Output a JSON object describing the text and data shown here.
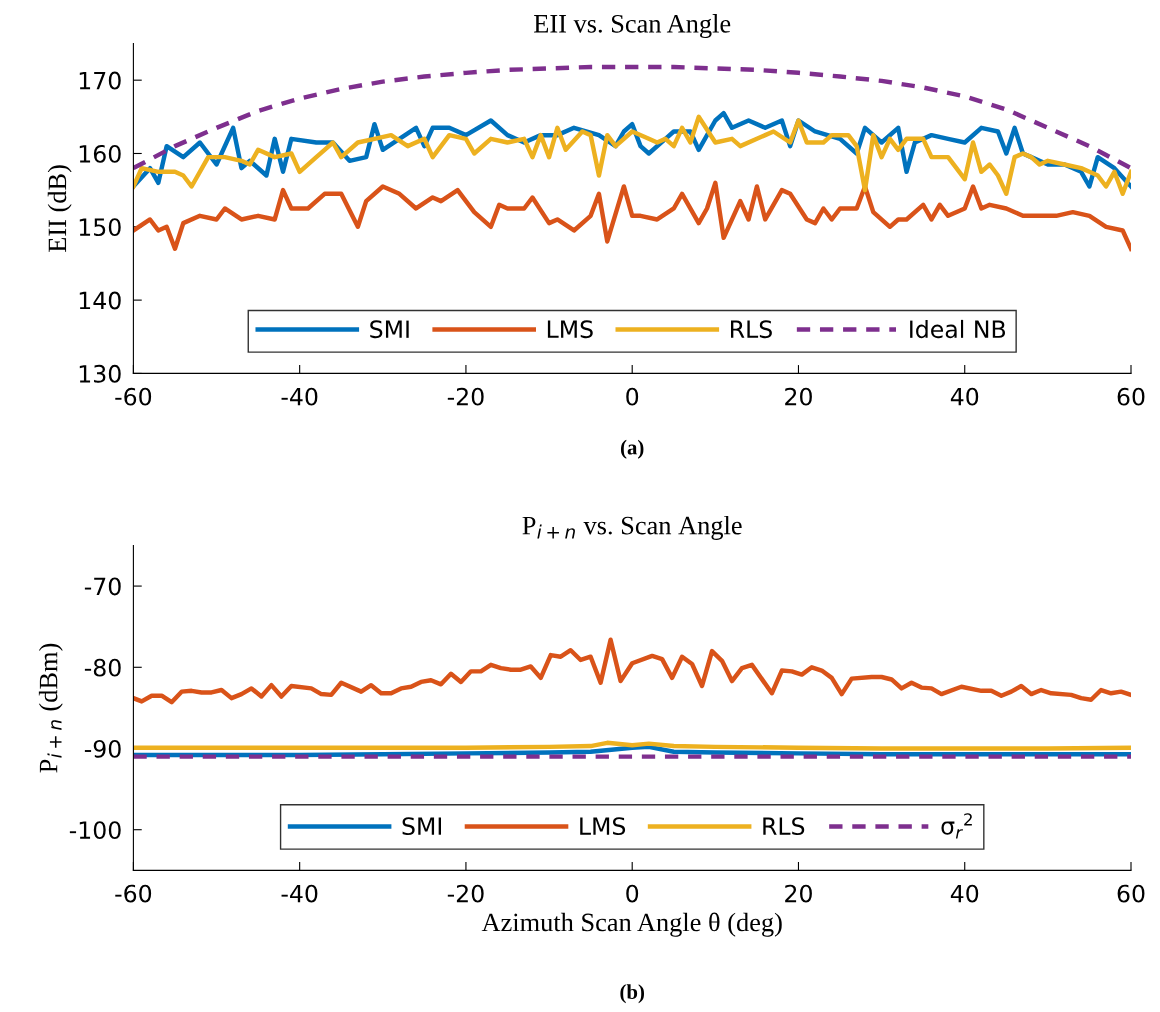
{
  "chart_data": [
    {
      "type": "line",
      "title": "EII vs. Scan Angle",
      "ylabel": "EII (dB)",
      "xlim": [
        -60,
        60
      ],
      "xticks": [
        -60,
        -40,
        -20,
        0,
        20,
        40,
        60
      ],
      "ylim": [
        130,
        175
      ],
      "yticks": [
        130,
        140,
        150,
        160,
        170
      ],
      "grid": false,
      "legend": "bottom",
      "annotations": [
        "(a)"
      ],
      "series": [
        {
          "name": "SMI",
          "color": "#0072bd",
          "line_style": "solid",
          "x": [
            -60,
            -58,
            -57,
            -56,
            -54,
            -52,
            -50,
            -48,
            -47,
            -46,
            -44,
            -43,
            -42,
            -41,
            -38,
            -36,
            -34,
            -32,
            -31,
            -30,
            -28,
            -26,
            -25,
            -24,
            -22,
            -20,
            -17,
            -15,
            -13,
            -11,
            -9,
            -7,
            -4,
            -2,
            -1,
            0,
            1,
            2,
            4,
            5,
            7,
            8,
            10,
            11,
            12,
            14,
            16,
            18,
            19,
            20,
            22,
            25,
            27,
            28,
            30,
            32,
            33,
            34,
            36,
            38,
            40,
            42,
            44,
            45,
            46,
            47,
            48,
            50,
            52,
            54,
            55,
            56,
            58,
            60
          ],
          "values": [
            155.5,
            158,
            156,
            161,
            159.5,
            161.5,
            158.5,
            163.5,
            158,
            159,
            157,
            162,
            157.5,
            162,
            161.5,
            161.5,
            159,
            159.5,
            164,
            160.5,
            162,
            163.5,
            161,
            163.5,
            163.5,
            162.5,
            164.5,
            162.5,
            161.5,
            162.5,
            162.5,
            163.5,
            162.5,
            161,
            163,
            164,
            161,
            160,
            162,
            163,
            163,
            160.5,
            164.5,
            165.5,
            163.5,
            164.5,
            163.5,
            164.5,
            161,
            164.5,
            163,
            162,
            160,
            163.5,
            161.5,
            163.5,
            157.5,
            161.5,
            162.5,
            162,
            161.5,
            163.5,
            163,
            160,
            163.5,
            160,
            159.5,
            158.5,
            158.5,
            157.5,
            155.5,
            159.5,
            158,
            155.5
          ]
        },
        {
          "name": "LMS",
          "color": "#d95319",
          "line_style": "solid",
          "x": [
            -60,
            -58,
            -57,
            -56,
            -55,
            -54,
            -52,
            -50,
            -49,
            -47,
            -45,
            -43,
            -42,
            -41,
            -39,
            -37,
            -35,
            -33,
            -32,
            -30,
            -28,
            -26,
            -24,
            -23,
            -21,
            -19,
            -17,
            -16,
            -15,
            -13,
            -12,
            -10,
            -9,
            -7,
            -5,
            -4,
            -3,
            -1,
            0,
            1,
            3,
            5,
            6,
            8,
            9,
            10,
            11,
            13,
            14,
            15,
            16,
            18,
            19,
            21,
            22,
            23,
            24,
            25,
            27,
            28,
            29,
            31,
            32,
            33,
            35,
            36,
            37,
            38,
            40,
            41,
            42,
            43,
            45,
            47,
            49,
            51,
            53,
            55,
            57,
            59,
            60
          ],
          "values": [
            149.5,
            151,
            149.5,
            150,
            147,
            150.5,
            151.5,
            151,
            152.5,
            151,
            151.5,
            151,
            155,
            152.5,
            152.5,
            154.5,
            154.5,
            150,
            153.5,
            155.5,
            154.5,
            152.5,
            154,
            153.5,
            155,
            152,
            150,
            153,
            152.5,
            152.5,
            154,
            150.5,
            151,
            149.5,
            151.5,
            154.5,
            148,
            155.5,
            151.5,
            151.5,
            151,
            152.5,
            154.5,
            150.5,
            152.5,
            156,
            148.5,
            153.5,
            151,
            155.5,
            151,
            155,
            154.5,
            151,
            150.5,
            152.5,
            151,
            152.5,
            152.5,
            155.5,
            152,
            150,
            151,
            151,
            153,
            151,
            153,
            151.5,
            152.5,
            155.5,
            152.5,
            153,
            152.5,
            151.5,
            151.5,
            151.5,
            152,
            151.5,
            150,
            149.5,
            147
          ]
        },
        {
          "name": "RLS",
          "color": "#edb120",
          "line_style": "solid",
          "x": [
            -60,
            -59,
            -57,
            -55,
            -54,
            -53,
            -51,
            -49,
            -47,
            -46,
            -45,
            -43,
            -41,
            -40,
            -38,
            -37,
            -36,
            -35,
            -33,
            -31,
            -29,
            -27,
            -25,
            -24,
            -22,
            -20,
            -19,
            -17,
            -15,
            -13,
            -12,
            -11,
            -10,
            -9,
            -8,
            -6,
            -5,
            -4,
            -3,
            -2,
            0,
            2,
            3,
            4,
            5,
            6,
            7,
            8,
            10,
            12,
            13,
            15,
            16,
            17,
            19,
            20,
            21,
            23,
            24,
            26,
            27,
            28,
            29,
            30,
            31,
            32,
            33,
            35,
            36,
            37,
            38,
            40,
            41,
            42,
            43,
            44,
            45,
            46,
            47,
            48,
            49,
            50,
            52,
            54,
            55,
            56,
            57,
            58,
            59,
            60
          ],
          "values": [
            155.5,
            158,
            157.5,
            157.5,
            157,
            155.5,
            159.5,
            159.5,
            159,
            158.5,
            160.5,
            159.5,
            160,
            157.5,
            159.5,
            160.5,
            161.5,
            159.5,
            161.5,
            162,
            162.5,
            161,
            162,
            159.5,
            162.5,
            162,
            160,
            162,
            161.5,
            162,
            159.5,
            162.5,
            159.5,
            163.5,
            160.5,
            163,
            162.5,
            157,
            162.5,
            161,
            163,
            162,
            161.5,
            162,
            161,
            163.5,
            161.5,
            165,
            161.5,
            162,
            161,
            162,
            162.5,
            163,
            161.5,
            164.5,
            161.5,
            161.5,
            162.5,
            162.5,
            161,
            155,
            162.5,
            159.5,
            162,
            160.5,
            162,
            162,
            159.5,
            159.5,
            159.5,
            156.5,
            161.5,
            157.5,
            158.5,
            157,
            154.5,
            159.5,
            160,
            159.5,
            158.5,
            159,
            158.5,
            158,
            157.5,
            157,
            155.5,
            157.5,
            154.5,
            157.5
          ]
        },
        {
          "name": "Ideal NB",
          "color": "#7e2f8e",
          "line_style": "dashed",
          "x": [
            -60,
            -55,
            -50,
            -45,
            -40,
            -35,
            -30,
            -25,
            -20,
            -15,
            -10,
            -5,
            0,
            5,
            10,
            15,
            20,
            25,
            30,
            35,
            40,
            45,
            50,
            55,
            60
          ],
          "values": [
            158,
            161,
            163.5,
            165.8,
            167.5,
            168.8,
            169.8,
            170.5,
            171,
            171.4,
            171.6,
            171.8,
            171.8,
            171.8,
            171.6,
            171.4,
            171,
            170.5,
            169.9,
            169,
            167.8,
            166,
            163.5,
            161,
            158
          ]
        }
      ]
    },
    {
      "type": "line",
      "title": "P$_{i+n}$ vs. Scan Angle",
      "xlabel": "Azimuth Scan Angle θ (deg)",
      "ylabel": "P$_{i+n}$ (dBm)",
      "xlim": [
        -60,
        60
      ],
      "xticks": [
        -60,
        -40,
        -20,
        0,
        20,
        40,
        60
      ],
      "ylim": [
        -105,
        -65
      ],
      "yticks": [
        -100,
        -90,
        -80,
        -70
      ],
      "grid": false,
      "legend": "bottom",
      "annotations": [
        "(b)"
      ],
      "series": [
        {
          "name": "SMI",
          "color": "#0072bd",
          "line_style": "solid",
          "x": [
            -60,
            -50,
            -40,
            -30,
            -20,
            -10,
            -5,
            0,
            2,
            5,
            10,
            20,
            30,
            40,
            50,
            60
          ],
          "values": [
            -90.8,
            -90.8,
            -90.8,
            -90.7,
            -90.6,
            -90.5,
            -90.4,
            -89.9,
            -89.8,
            -90.4,
            -90.5,
            -90.6,
            -90.7,
            -90.7,
            -90.7,
            -90.7
          ]
        },
        {
          "name": "LMS",
          "color": "#d95319",
          "line_style": "solid",
          "x": [
            -60,
            -59,
            -57.8,
            -56.6,
            -55.4,
            -54.2,
            -53,
            -51.8,
            -50.6,
            -49.4,
            -48.2,
            -47,
            -45.8,
            -44.6,
            -43.4,
            -42.2,
            -41,
            -38.6,
            -37.4,
            -36.2,
            -35,
            -32.6,
            -31.4,
            -30.2,
            -29,
            -27.8,
            -26.6,
            -25.4,
            -24.2,
            -23,
            -21.8,
            -20.6,
            -19.4,
            -18.2,
            -17,
            -15.8,
            -14.6,
            -13.4,
            -12.2,
            -11,
            -9.8,
            -8.6,
            -7.4,
            -6.2,
            -5,
            -3.8,
            -2.6,
            -1.4,
            0,
            2.4,
            3.6,
            4.8,
            6,
            7.2,
            8.4,
            9.6,
            10.8,
            12,
            13.2,
            14.4,
            16.8,
            18,
            19.2,
            20.4,
            21.6,
            22.8,
            24,
            25.2,
            26.4,
            28.8,
            30,
            31.2,
            32.4,
            33.6,
            34.8,
            36,
            37.2,
            39.6,
            42,
            43.2,
            44.4,
            45.6,
            46.8,
            48,
            49.2,
            50.4,
            52.8,
            54,
            55.2,
            56.4,
            57.6,
            58.8,
            60
          ],
          "values": [
            -83.8,
            -84.2,
            -83.5,
            -83.5,
            -84.3,
            -83,
            -82.9,
            -83.1,
            -83.1,
            -82.8,
            -83.8,
            -83.3,
            -82.6,
            -83.6,
            -82.2,
            -83.6,
            -82.3,
            -82.6,
            -83.3,
            -83.4,
            -81.9,
            -83,
            -82.2,
            -83.2,
            -83.2,
            -82.6,
            -82.4,
            -81.8,
            -81.6,
            -82.1,
            -80.8,
            -81.8,
            -80.5,
            -80.5,
            -79.7,
            -80.1,
            -80.3,
            -80.3,
            -79.9,
            -81.3,
            -78.5,
            -78.7,
            -77.9,
            -79.1,
            -78.7,
            -81.9,
            -76.6,
            -81.7,
            -79.5,
            -78.6,
            -79,
            -81.3,
            -78.7,
            -79.6,
            -82.3,
            -78,
            -79.2,
            -81.7,
            -80.1,
            -79.7,
            -83.2,
            -80.4,
            -80.5,
            -80.9,
            -80,
            -80.4,
            -81.3,
            -83.3,
            -81.4,
            -81.2,
            -81.2,
            -81.5,
            -82.6,
            -81.9,
            -82.5,
            -82.6,
            -83.3,
            -82.4,
            -82.9,
            -82.9,
            -83.5,
            -83,
            -82.3,
            -83.3,
            -82.8,
            -83.2,
            -83.4,
            -83.8,
            -84,
            -82.8,
            -83.2,
            -83,
            -83.4
          ]
        },
        {
          "name": "RLS",
          "color": "#edb120",
          "line_style": "solid",
          "x": [
            -60,
            -50,
            -40,
            -30,
            -20,
            -10,
            -5,
            -3,
            0,
            2,
            5,
            10,
            20,
            30,
            40,
            50,
            60
          ],
          "values": [
            -89.9,
            -89.9,
            -89.9,
            -89.9,
            -89.9,
            -89.8,
            -89.7,
            -89.3,
            -89.6,
            -89.4,
            -89.7,
            -89.8,
            -89.9,
            -90,
            -90,
            -90,
            -89.9
          ]
        },
        {
          "name": "σ$_{r}$$^{2}$",
          "color": "#7e2f8e",
          "line_style": "dashed",
          "x": [
            -60,
            60
          ],
          "values": [
            -91,
            -91
          ]
        }
      ]
    }
  ]
}
